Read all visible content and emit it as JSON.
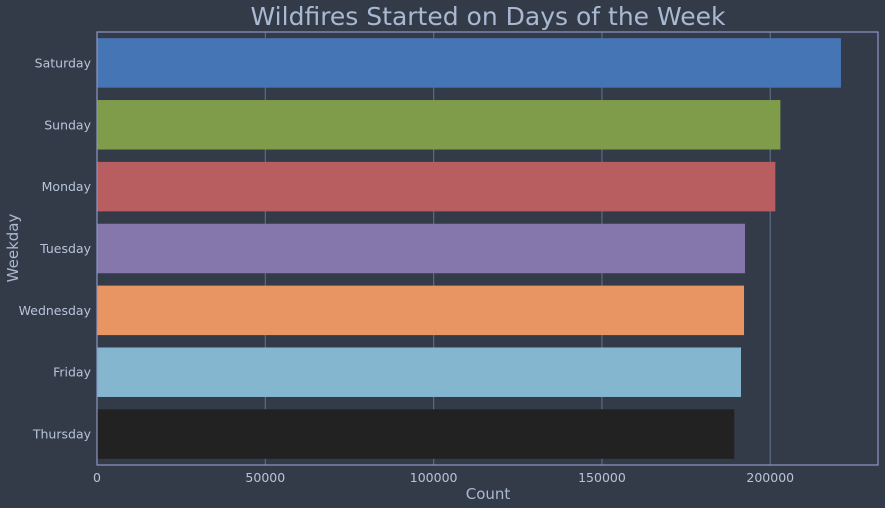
{
  "chart_data": {
    "type": "bar",
    "orientation": "horizontal",
    "title": "Wildfires Started on Days of the Week",
    "xlabel": "Count",
    "ylabel": "Weekday",
    "categories": [
      "Saturday",
      "Sunday",
      "Monday",
      "Tuesday",
      "Wednesday",
      "Friday",
      "Thursday"
    ],
    "values": [
      221000,
      203000,
      201500,
      192500,
      192200,
      191300,
      189300
    ],
    "colors": [
      "#4575b4",
      "#7f9c4a",
      "#b85e60",
      "#8577ab",
      "#e99563",
      "#84b7cf",
      "#222222"
    ],
    "xlim": [
      0,
      232000
    ],
    "xticks": [
      0,
      50000,
      100000,
      150000,
      200000
    ],
    "xtick_labels": [
      "0",
      "50000",
      "100000",
      "150000",
      "200000"
    ],
    "grid": "vertical",
    "legend": "none"
  },
  "theme": {
    "background": "#343b48",
    "frame": "#8d97c4",
    "grid": "#5b6b82",
    "text": "#aab9d2"
  }
}
